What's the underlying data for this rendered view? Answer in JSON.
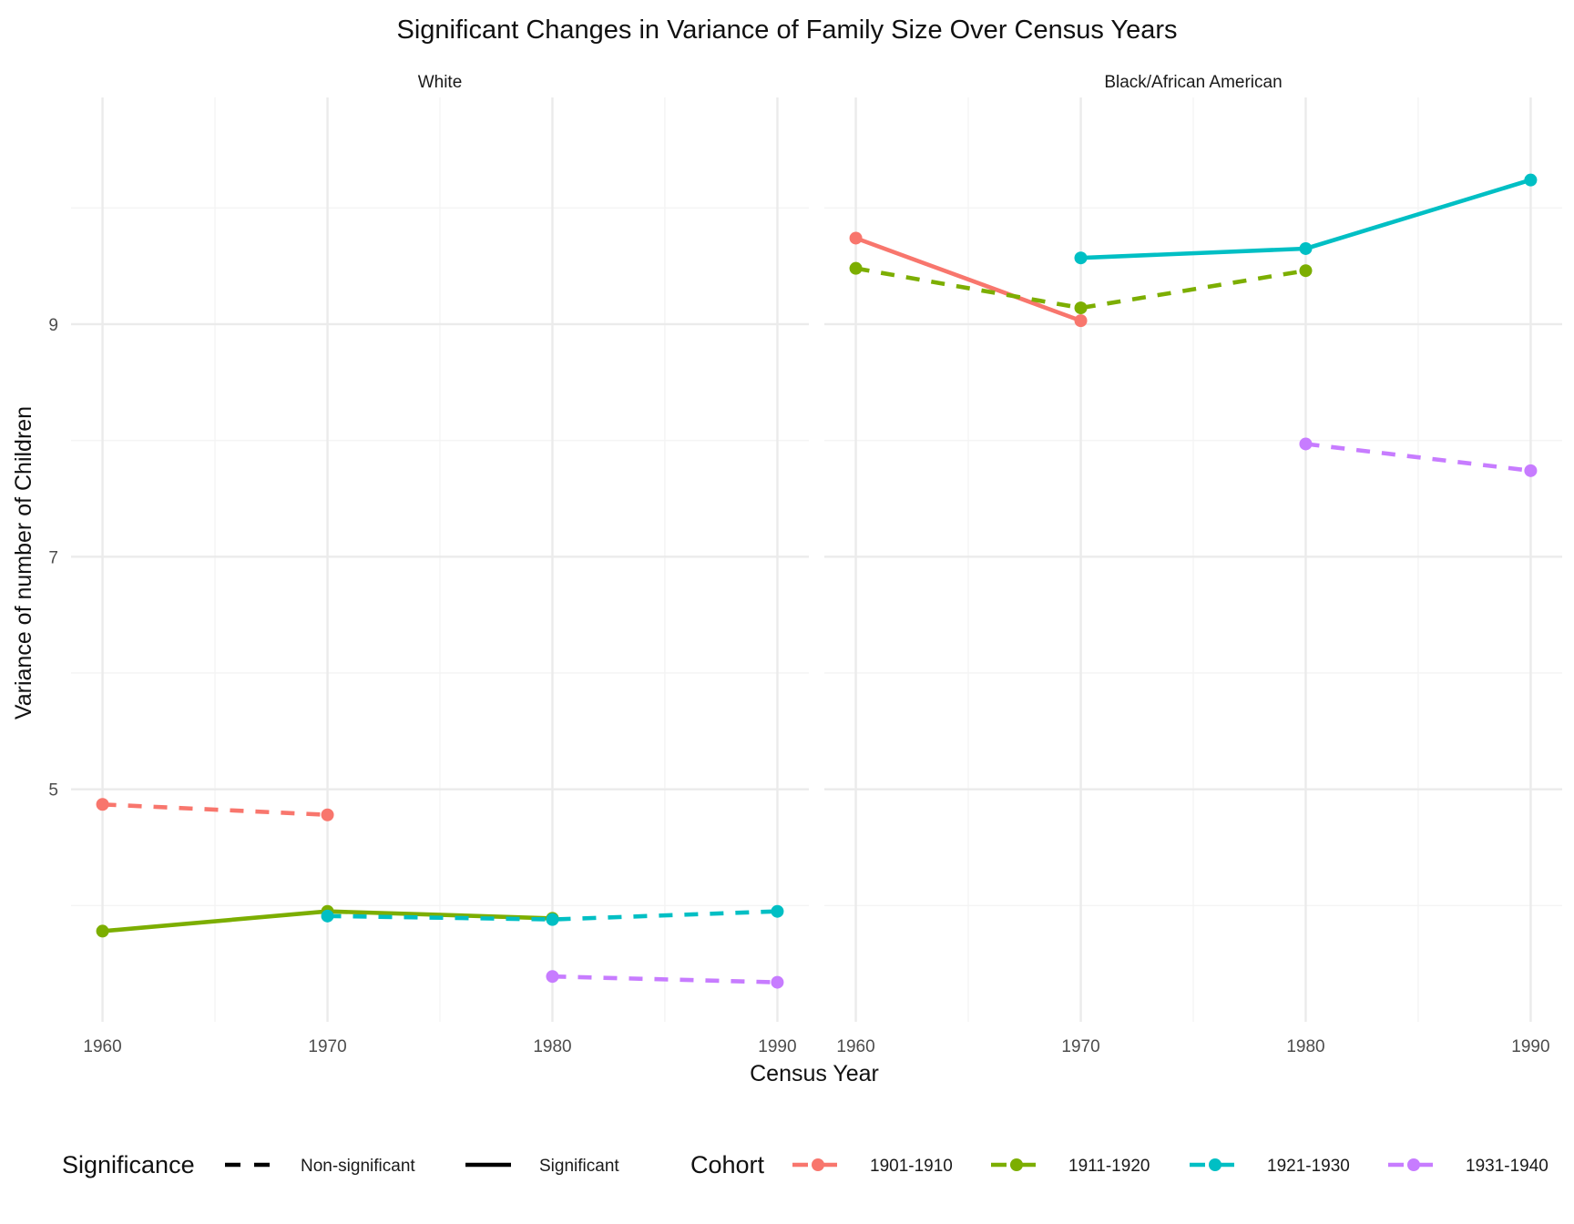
{
  "chart_data": {
    "type": "line",
    "title": "Significant Changes in Variance of Family Size Over Census Years",
    "xlabel": "Census Year",
    "ylabel": "Variance of number of Children",
    "x_ticks": [
      1960,
      1970,
      1980,
      1990
    ],
    "y_ticks": [
      5,
      7,
      9
    ],
    "ylim": [
      3.0,
      10.95
    ],
    "xlim": [
      1958.6,
      1991.4
    ],
    "grid": true,
    "legend_position": "bottom",
    "panels": [
      {
        "name": "White",
        "series": [
          {
            "cohort": "1901-1910",
            "significance": "Non-significant",
            "x": [
              1960,
              1970
            ],
            "y": [
              4.87,
              4.78
            ]
          },
          {
            "cohort": "1911-1920",
            "significance": "Significant",
            "x": [
              1960,
              1970,
              1980
            ],
            "y": [
              3.78,
              3.95,
              3.89
            ]
          },
          {
            "cohort": "1921-1930",
            "significance": "Non-significant",
            "x": [
              1970,
              1980,
              1990
            ],
            "y": [
              3.91,
              3.88,
              3.95
            ]
          },
          {
            "cohort": "1931-1940",
            "significance": "Non-significant",
            "x": [
              1980,
              1990
            ],
            "y": [
              3.39,
              3.34
            ]
          }
        ]
      },
      {
        "name": "Black/African American",
        "series": [
          {
            "cohort": "1901-1910",
            "significance": "Significant",
            "x": [
              1960,
              1970
            ],
            "y": [
              9.74,
              9.03
            ]
          },
          {
            "cohort": "1911-1920",
            "significance": "Non-significant",
            "x": [
              1960,
              1970,
              1980
            ],
            "y": [
              9.48,
              9.14,
              9.46
            ]
          },
          {
            "cohort": "1921-1930",
            "significance": "Significant",
            "x": [
              1970,
              1980,
              1990
            ],
            "y": [
              9.57,
              9.65,
              10.24
            ]
          },
          {
            "cohort": "1931-1940",
            "significance": "Non-significant",
            "x": [
              1980,
              1990
            ],
            "y": [
              7.97,
              7.74
            ]
          }
        ]
      }
    ],
    "legend": {
      "significance_title": "Significance",
      "significance_items": [
        "Non-significant",
        "Significant"
      ],
      "cohort_title": "Cohort",
      "cohort_items": [
        "1901-1910",
        "1911-1920",
        "1921-1930",
        "1931-1940"
      ]
    },
    "colors": {
      "1901-1910": "#F8766D",
      "1911-1920": "#7CAE00",
      "1921-1930": "#00BFC4",
      "1931-1940": "#C77CFF",
      "grid_major": "#EBEBEB",
      "grid_minor": "#F4F4F4"
    }
  }
}
